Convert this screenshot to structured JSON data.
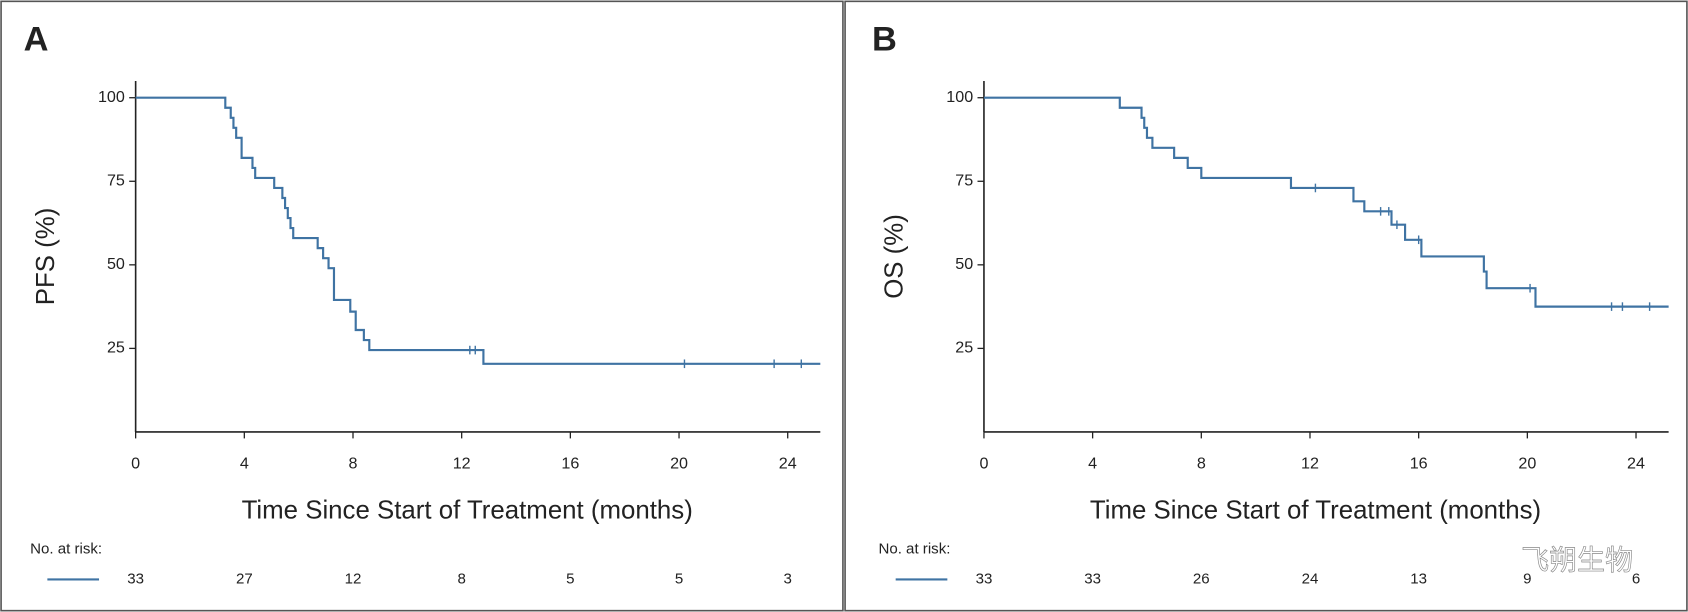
{
  "chart_data": [
    {
      "type": "step",
      "panel_label": "A",
      "ylabel": "PFS (%)",
      "xlabel": "Time Since Start of Treatment (months)",
      "xlim": [
        0,
        25.2
      ],
      "ylim": [
        0,
        105
      ],
      "xticks": [
        0,
        4,
        8,
        12,
        16,
        20,
        24
      ],
      "yticks": [
        25,
        50,
        75,
        100
      ],
      "series": [
        {
          "color": "#3f73a3",
          "x": [
            0,
            3.3,
            3.3,
            3.5,
            3.5,
            3.6,
            3.6,
            3.7,
            3.7,
            3.9,
            3.9,
            4.3,
            4.3,
            4.4,
            4.4,
            5.1,
            5.1,
            5.4,
            5.4,
            5.5,
            5.5,
            5.6,
            5.6,
            5.7,
            5.7,
            5.8,
            5.8,
            6.7,
            6.7,
            6.9,
            6.9,
            7.1,
            7.1,
            7.3,
            7.3,
            7.9,
            7.9,
            8.1,
            8.1,
            8.4,
            8.4,
            8.6,
            8.6,
            12.8,
            12.8,
            25.2
          ],
          "values": [
            100,
            100,
            97,
            97,
            94,
            94,
            91,
            91,
            88,
            88,
            82,
            82,
            79,
            79,
            76,
            76,
            73,
            73,
            70,
            70,
            67,
            67,
            64,
            64,
            61,
            61,
            58,
            58,
            55,
            55,
            52,
            52,
            49,
            49,
            39.5,
            39.5,
            36,
            36,
            30.5,
            30.5,
            27.5,
            27.5,
            24.5,
            24.5,
            20.4,
            20.4
          ],
          "censored_x": [
            12.3,
            12.5,
            20.2,
            23.5,
            24.5
          ],
          "censored_values": [
            24.5,
            24.5,
            20.4,
            20.4,
            20.4
          ]
        }
      ],
      "at_risk_label": "No. at risk:",
      "at_risk": [
        33,
        27,
        12,
        8,
        5,
        5,
        3
      ]
    },
    {
      "type": "step",
      "panel_label": "B",
      "ylabel": "OS (%)",
      "xlabel": "Time Since Start of Treatment (months)",
      "xlim": [
        0,
        25.2
      ],
      "ylim": [
        0,
        105
      ],
      "xticks": [
        0,
        4,
        8,
        12,
        16,
        20,
        24
      ],
      "yticks": [
        25,
        50,
        75,
        100
      ],
      "series": [
        {
          "color": "#3f73a3",
          "x": [
            0,
            5.0,
            5.0,
            5.8,
            5.8,
            5.9,
            5.9,
            6.0,
            6.0,
            6.2,
            6.2,
            6.5,
            6.5,
            7.0,
            7.0,
            7.5,
            7.5,
            8.0,
            8.0,
            11.3,
            11.3,
            13.6,
            13.6,
            14.0,
            14.0,
            14.8,
            14.8,
            15.0,
            15.0,
            15.5,
            15.5,
            16.1,
            16.1,
            18.4,
            18.4,
            18.5,
            18.5,
            20.3,
            20.3,
            25.2
          ],
          "values": [
            100,
            100,
            97,
            97,
            94,
            94,
            91,
            91,
            88,
            88,
            85,
            85,
            85,
            85,
            82,
            82,
            79,
            79,
            76,
            76,
            73,
            73,
            69,
            69,
            66,
            66,
            66,
            66,
            62,
            62,
            57.5,
            57.5,
            52.5,
            52.5,
            48,
            48,
            43,
            43,
            37.5,
            37.5
          ],
          "censored_x": [
            12.2,
            14.6,
            14.9,
            15.2,
            16.0,
            20.1,
            23.1,
            23.5,
            24.5
          ],
          "censored_values": [
            73,
            66,
            66,
            62,
            57.5,
            43,
            37.5,
            37.5,
            37.5
          ]
        }
      ],
      "at_risk_label": "No. at risk:",
      "at_risk": [
        33,
        33,
        26,
        24,
        13,
        9,
        6
      ]
    }
  ],
  "watermark": "飞朔生物"
}
